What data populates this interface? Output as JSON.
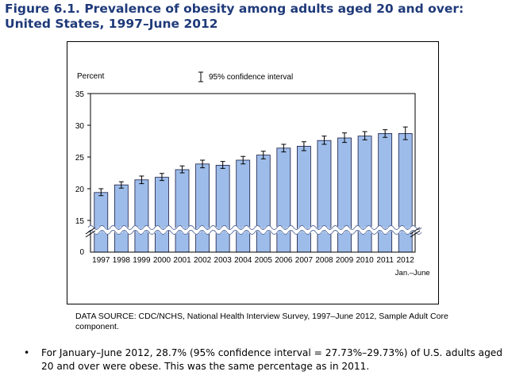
{
  "title": "Figure 6.1. Prevalence of obesity among adults aged 20 and over: United States, 1997–June 2012",
  "chart_data": {
    "type": "bar",
    "ylabel": "Percent",
    "legend": "95% confidence interval",
    "legend_placement": "top-center",
    "ylim": [
      0,
      35
    ],
    "axis_break": "between 0 and 15",
    "yticks": [
      "35",
      "30",
      "25",
      "20",
      "15",
      "0"
    ],
    "categories": [
      "1997",
      "1998",
      "1999",
      "2000",
      "2001",
      "2002",
      "2003",
      "2004",
      "2005",
      "2006",
      "2007",
      "2008",
      "2009",
      "2010",
      "2011",
      "2012"
    ],
    "category_sublabel": "Jan.–June",
    "values": [
      19.4,
      20.6,
      21.4,
      21.8,
      23.0,
      23.9,
      23.7,
      24.5,
      25.3,
      26.4,
      26.7,
      27.6,
      28.0,
      28.3,
      28.7,
      28.7
    ],
    "ci_low": [
      18.9,
      20.1,
      20.8,
      21.3,
      22.5,
      23.3,
      23.2,
      23.9,
      24.7,
      25.8,
      26.0,
      27.0,
      27.3,
      27.7,
      28.1,
      27.73
    ],
    "ci_high": [
      20.0,
      21.1,
      22.0,
      22.4,
      23.6,
      24.5,
      24.3,
      25.1,
      25.9,
      27.0,
      27.4,
      28.3,
      28.8,
      29.0,
      29.3,
      29.73
    ],
    "bar_color": "#9dbcea",
    "bar_edge_color": "#1a1a40"
  },
  "source": "DATA SOURCE: CDC/NCHS, National Health Interview Survey, 1997–June 2012, Sample Adult Core component.",
  "bullet": {
    "marker": "•",
    "text": "For January–June 2012, 28.7% (95% confidence interval = 27.73%–29.73%) of U.S. adults aged 20 and over were obese. This was the same percentage as in 2011."
  }
}
